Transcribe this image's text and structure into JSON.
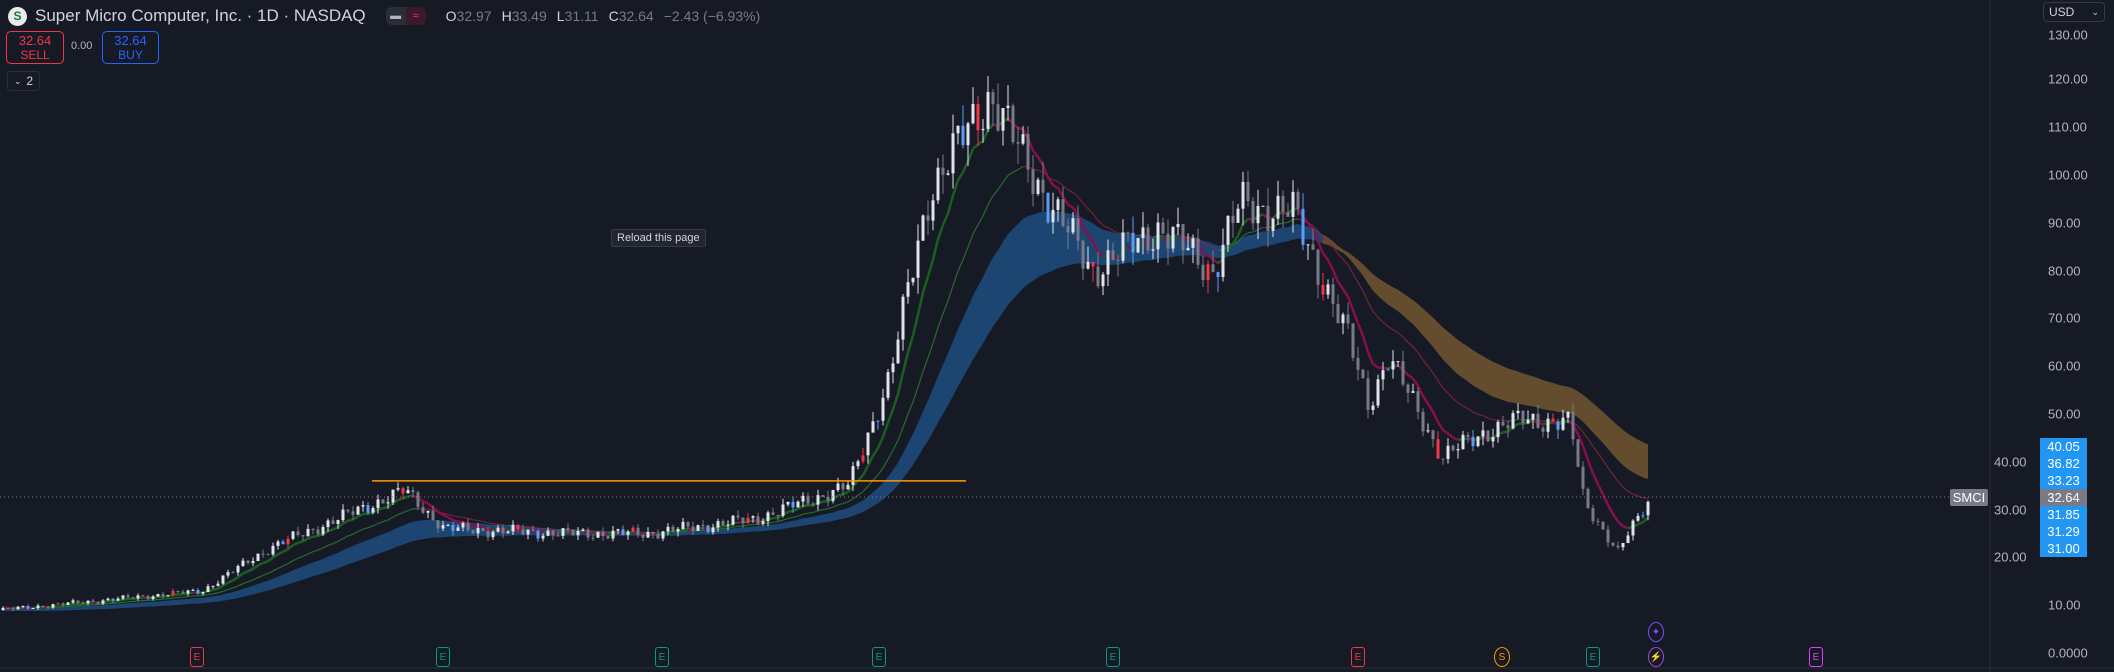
{
  "header": {
    "logo_text": "S",
    "title": "Super Micro Computer, Inc. · 1D · NASDAQ",
    "toggle_icons": [
      "minus-icon",
      "wave-icon"
    ],
    "ohlc": {
      "o_label": "O",
      "o": "32.97",
      "h_label": "H",
      "h": "33.49",
      "l_label": "L",
      "l": "31.11",
      "c_label": "C",
      "c": "32.64",
      "change": "−2.43 (−6.93%)"
    }
  },
  "trade": {
    "sell_price": "32.64",
    "sell_label": "SELL",
    "spread": "0.00",
    "buy_price": "32.64",
    "buy_label": "BUY"
  },
  "indicators_collapse": {
    "count": "2"
  },
  "tooltip": "Reload this page",
  "currency": "USD",
  "price_axis": [
    "130.00",
    "120.00",
    "110.00",
    "100.00",
    "90.00",
    "80.00",
    "70.00",
    "60.00",
    "50.00",
    "40.00",
    "30.00",
    "20.00",
    "10.00",
    "0.0000"
  ],
  "price_labels": [
    "40.05",
    "36.82",
    "33.23",
    "32.64",
    "31.85",
    "31.29",
    "31.00"
  ],
  "symbol_label": "SMCI",
  "current_price": 32.64,
  "horizontal_line_price": 36,
  "colors": {
    "background": "#161a25",
    "up": "#e0e3eb",
    "down": "#787b86",
    "hline": "#ff9800",
    "slow_band": "#1e4a7a",
    "slow_band_bear": "#6b5330",
    "fast_up": "#1b5e20",
    "fast_down": "#880e4f",
    "label_blue": "#2196f3",
    "sell": "#f23645",
    "buy": "#2962ff"
  },
  "events": [
    {
      "type": "E",
      "color": "#f23645"
    },
    {
      "type": "E",
      "color": "#089981"
    },
    {
      "type": "E",
      "color": "#089981"
    },
    {
      "type": "E",
      "color": "#089981"
    },
    {
      "type": "E",
      "color": "#089981"
    },
    {
      "type": "E",
      "color": "#f23645"
    },
    {
      "type": "S",
      "color": "#ff9800"
    },
    {
      "type": "E",
      "color": "#089981"
    },
    {
      "type": "⚡",
      "color": "#9c4dd6"
    },
    {
      "type": "E",
      "color": "#e040fb"
    },
    {
      "type": "✦",
      "color": "#7c4dff"
    }
  ]
}
